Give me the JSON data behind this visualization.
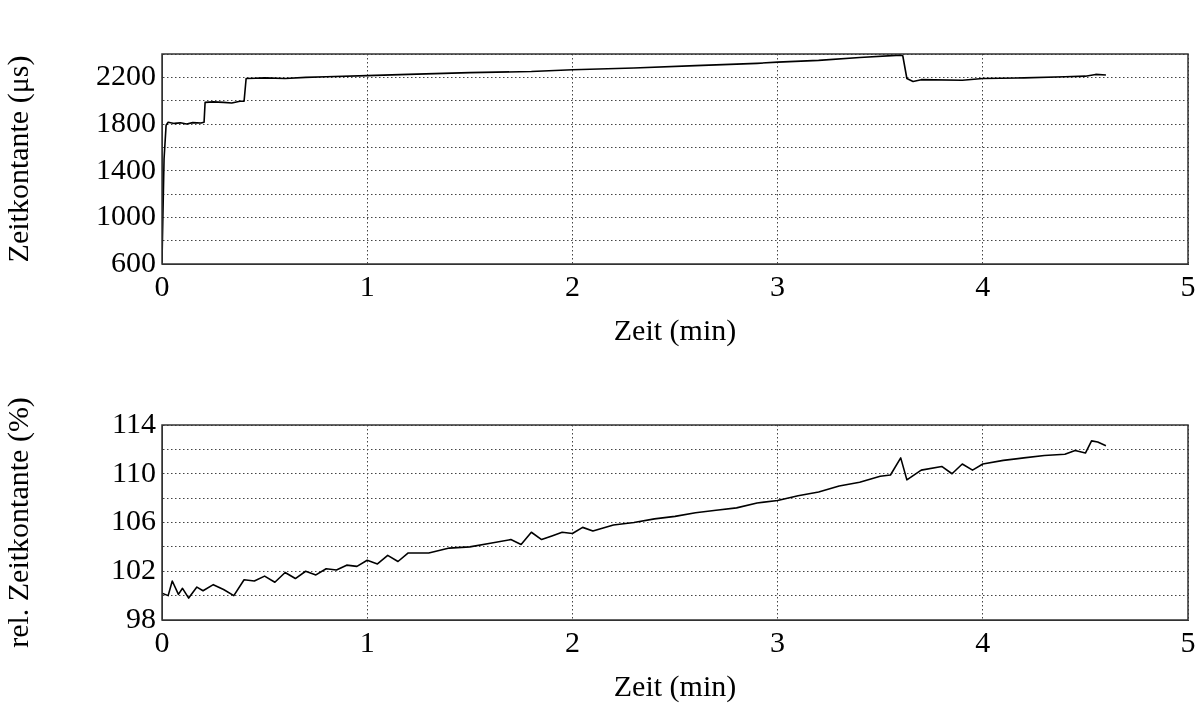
{
  "chart_data": [
    {
      "type": "line",
      "xlabel": "Zeit (min)",
      "ylabel": "Zeitkontante (μs)",
      "xlim": [
        0,
        5
      ],
      "xticks": [
        0,
        1,
        2,
        3,
        4,
        5
      ],
      "ylim": [
        600,
        2400
      ],
      "yticks": [
        600,
        {
          "value": 800,
          "label": null
        },
        1000,
        {
          "value": 1200,
          "label": null
        },
        1400,
        {
          "value": 1600,
          "label": null
        },
        1800,
        {
          "value": 2000,
          "label": null
        },
        2200,
        {
          "value": 2400,
          "label": null
        }
      ],
      "grid": true,
      "marker": "none",
      "line_style": "solid",
      "series": [
        {
          "color": "#000000",
          "x": [
            0,
            0.01,
            0.02,
            0.03,
            0.06,
            0.09,
            0.12,
            0.15,
            0.19,
            0.205,
            0.21,
            0.25,
            0.3,
            0.34,
            0.38,
            0.4,
            0.41,
            0.5,
            0.6,
            0.7,
            0.8,
            1.0,
            1.2,
            1.5,
            1.8,
            2.0,
            2.3,
            2.6,
            2.9,
            3.0,
            3.2,
            3.4,
            3.6,
            3.61,
            3.63,
            3.66,
            3.7,
            3.9,
            4.0,
            4.2,
            4.4,
            4.5,
            4.55,
            4.6
          ],
          "values": [
            620,
            1500,
            1790,
            1815,
            1805,
            1810,
            1800,
            1812,
            1808,
            1815,
            1985,
            1990,
            1985,
            1980,
            1995,
            1995,
            2190,
            2195,
            2190,
            2200,
            2205,
            2215,
            2225,
            2240,
            2250,
            2265,
            2280,
            2300,
            2320,
            2330,
            2345,
            2370,
            2390,
            2385,
            2190,
            2165,
            2180,
            2175,
            2190,
            2195,
            2205,
            2210,
            2225,
            2220
          ]
        }
      ]
    },
    {
      "type": "line",
      "xlabel": "Zeit (min)",
      "ylabel": "rel. Zeitkontante (%)",
      "xlim": [
        0,
        5
      ],
      "xticks": [
        0,
        1,
        2,
        3,
        4,
        5
      ],
      "ylim": [
        98,
        114
      ],
      "yticks": [
        98,
        {
          "value": 100,
          "label": null
        },
        102,
        {
          "value": 104,
          "label": null
        },
        106,
        {
          "value": 108,
          "label": null
        },
        110,
        {
          "value": 112,
          "label": null
        },
        114
      ],
      "grid": true,
      "marker": "none",
      "line_style": "solid",
      "series": [
        {
          "color": "#000000",
          "x": [
            0,
            0.03,
            0.05,
            0.08,
            0.1,
            0.13,
            0.17,
            0.2,
            0.25,
            0.3,
            0.35,
            0.4,
            0.45,
            0.5,
            0.55,
            0.6,
            0.65,
            0.7,
            0.75,
            0.8,
            0.85,
            0.9,
            0.95,
            1.0,
            1.05,
            1.1,
            1.15,
            1.2,
            1.3,
            1.4,
            1.5,
            1.6,
            1.7,
            1.75,
            1.8,
            1.85,
            1.9,
            1.95,
            2.0,
            2.05,
            2.1,
            2.2,
            2.3,
            2.4,
            2.5,
            2.6,
            2.7,
            2.8,
            2.9,
            3.0,
            3.1,
            3.2,
            3.3,
            3.4,
            3.5,
            3.55,
            3.6,
            3.63,
            3.7,
            3.8,
            3.85,
            3.9,
            3.95,
            4.0,
            4.1,
            4.2,
            4.3,
            4.4,
            4.45,
            4.5,
            4.53,
            4.56,
            4.6
          ],
          "values": [
            100.2,
            100,
            101.2,
            100.1,
            100.6,
            99.8,
            100.7,
            100.4,
            100.9,
            100.5,
            100,
            101.3,
            101.2,
            101.6,
            101.1,
            101.9,
            101.4,
            102,
            101.7,
            102.2,
            102.1,
            102.5,
            102.4,
            102.9,
            102.6,
            103.3,
            102.8,
            103.5,
            103.5,
            103.9,
            104,
            104.3,
            104.6,
            104.2,
            105.2,
            104.6,
            104.9,
            105.2,
            105.1,
            105.6,
            105.3,
            105.8,
            106,
            106.3,
            106.5,
            106.8,
            107,
            107.2,
            107.6,
            107.8,
            108.2,
            108.5,
            109,
            109.3,
            109.8,
            109.9,
            111.3,
            109.5,
            110.3,
            110.6,
            110,
            110.8,
            110.3,
            110.8,
            111.1,
            111.3,
            111.5,
            111.6,
            111.9,
            111.7,
            112.7,
            112.6,
            112.3
          ]
        }
      ]
    }
  ]
}
